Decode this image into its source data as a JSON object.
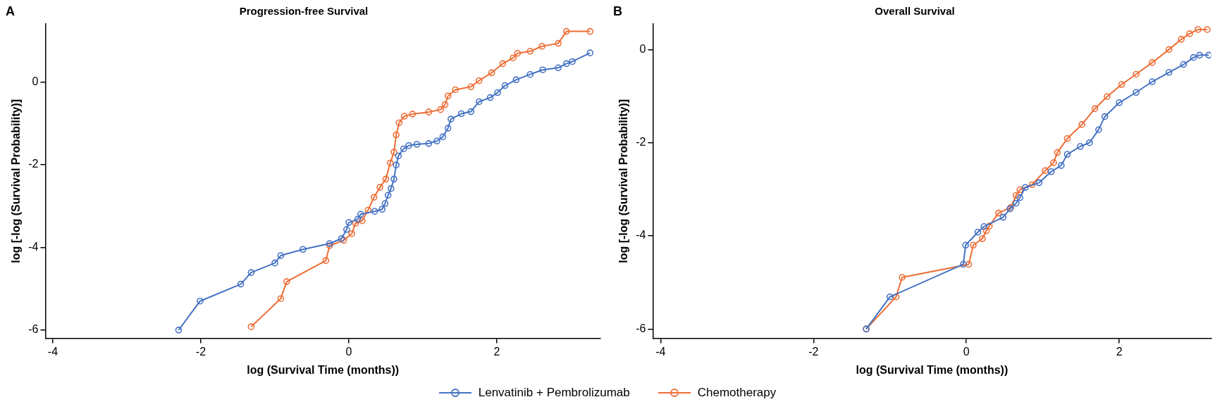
{
  "chart_data": [
    {
      "type": "line",
      "title": "Progression-free Survival",
      "xlabel": "log (Survival Time (months))",
      "ylabel": "log [-log (Survival Probability)]",
      "annotations": [
        "A"
      ],
      "xlim": [
        -4.1,
        3.4
      ],
      "xticks": [
        -4,
        -2,
        0,
        2
      ],
      "ylim": [
        -6.2,
        1.4
      ],
      "yticks": [
        -6,
        -4,
        -2,
        0
      ],
      "marker": "circle",
      "legend": "bottom",
      "grid": false,
      "series": [
        {
          "name": "Lenvatinib + Pembrolizumab",
          "color": "#4472c4",
          "x": [
            -2.3,
            -2.01,
            -1.46,
            -1.32,
            -1.0,
            -0.92,
            -0.62,
            -0.26,
            -0.1,
            -0.03,
            0.0,
            0.12,
            0.16,
            0.35,
            0.45,
            0.49,
            0.53,
            0.57,
            0.61,
            0.64,
            0.67,
            0.74,
            0.81,
            0.92,
            1.08,
            1.19,
            1.27,
            1.34,
            1.38,
            1.52,
            1.65,
            1.76,
            1.91,
            2.01,
            2.11,
            2.26,
            2.45,
            2.62,
            2.83,
            2.94,
            3.02,
            3.26
          ],
          "values": [
            -6.0,
            -5.3,
            -4.89,
            -4.61,
            -4.38,
            -4.2,
            -4.05,
            -3.91,
            -3.79,
            -3.57,
            -3.4,
            -3.32,
            -3.2,
            -3.13,
            -3.08,
            -2.94,
            -2.74,
            -2.58,
            -2.35,
            -2.01,
            -1.79,
            -1.62,
            -1.54,
            -1.51,
            -1.49,
            -1.43,
            -1.33,
            -1.12,
            -0.9,
            -0.77,
            -0.72,
            -0.48,
            -0.38,
            -0.26,
            -0.09,
            0.05,
            0.18,
            0.29,
            0.34,
            0.44,
            0.49,
            0.7
          ]
        },
        {
          "name": "Chemotherapy",
          "color": "#ed6d35",
          "x": [
            -1.32,
            -0.92,
            -0.84,
            -0.31,
            -0.26,
            -0.07,
            0.04,
            0.09,
            0.18,
            0.26,
            0.34,
            0.42,
            0.5,
            0.56,
            0.61,
            0.64,
            0.68,
            0.75,
            0.86,
            1.08,
            1.24,
            1.3,
            1.34,
            1.44,
            1.65,
            1.76,
            1.93,
            2.08,
            2.22,
            2.28,
            2.45,
            2.61,
            2.83,
            2.94,
            3.26
          ],
          "values": [
            -5.92,
            -5.24,
            -4.83,
            -4.32,
            -3.96,
            -3.83,
            -3.67,
            -3.42,
            -3.36,
            -3.1,
            -2.79,
            -2.55,
            -2.35,
            -1.96,
            -1.7,
            -1.28,
            -0.99,
            -0.83,
            -0.78,
            -0.73,
            -0.67,
            -0.55,
            -0.34,
            -0.19,
            -0.12,
            0.03,
            0.22,
            0.44,
            0.58,
            0.69,
            0.74,
            0.86,
            0.93,
            1.22,
            1.22
          ]
        }
      ]
    },
    {
      "type": "line",
      "title": "Overall Survival",
      "xlabel": "log (Survival Time (months))",
      "ylabel": "log [-log (Survival Probability)]",
      "annotations": [
        "B"
      ],
      "xlim": [
        -4.1,
        3.2
      ],
      "xticks": [
        -4,
        -2,
        0,
        2
      ],
      "ylim": [
        -6.2,
        0.55
      ],
      "yticks": [
        -6,
        -4,
        -2,
        0
      ],
      "marker": "circle",
      "grid": false,
      "series": [
        {
          "color": "#4472c4",
          "x": [
            -1.31,
            -1.0,
            -0.04,
            -0.01,
            0.15,
            0.23,
            0.48,
            0.57,
            0.65,
            0.7,
            0.77,
            0.95,
            1.11,
            1.24,
            1.32,
            1.49,
            1.61,
            1.73,
            1.81,
            2.0,
            2.22,
            2.43,
            2.65,
            2.84,
            2.97,
            3.05,
            3.17
          ],
          "values": [
            -6.0,
            -5.31,
            -4.61,
            -4.2,
            -3.92,
            -3.8,
            -3.6,
            -3.42,
            -3.3,
            -3.18,
            -2.96,
            -2.86,
            -2.62,
            -2.49,
            -2.25,
            -2.08,
            -2.0,
            -1.72,
            -1.44,
            -1.14,
            -0.92,
            -0.69,
            -0.49,
            -0.32,
            -0.17,
            -0.12,
            -0.12
          ]
        },
        {
          "color": "#ed6d35",
          "x": [
            -1.31,
            -0.92,
            -0.84,
            0.03,
            0.09,
            0.21,
            0.26,
            0.3,
            0.42,
            0.58,
            0.65,
            0.7,
            0.86,
            1.03,
            1.14,
            1.19,
            1.32,
            1.51,
            1.68,
            1.84,
            2.03,
            2.22,
            2.43,
            2.65,
            2.81,
            2.92,
            3.03,
            3.15
          ],
          "values": [
            -6.0,
            -5.31,
            -4.89,
            -4.61,
            -4.2,
            -4.06,
            -3.89,
            -3.79,
            -3.51,
            -3.39,
            -3.13,
            -3.01,
            -2.9,
            -2.6,
            -2.43,
            -2.21,
            -1.91,
            -1.61,
            -1.27,
            -1.01,
            -0.75,
            -0.53,
            -0.28,
            0.0,
            0.22,
            0.34,
            0.43,
            0.43
          ]
        }
      ]
    }
  ]
}
